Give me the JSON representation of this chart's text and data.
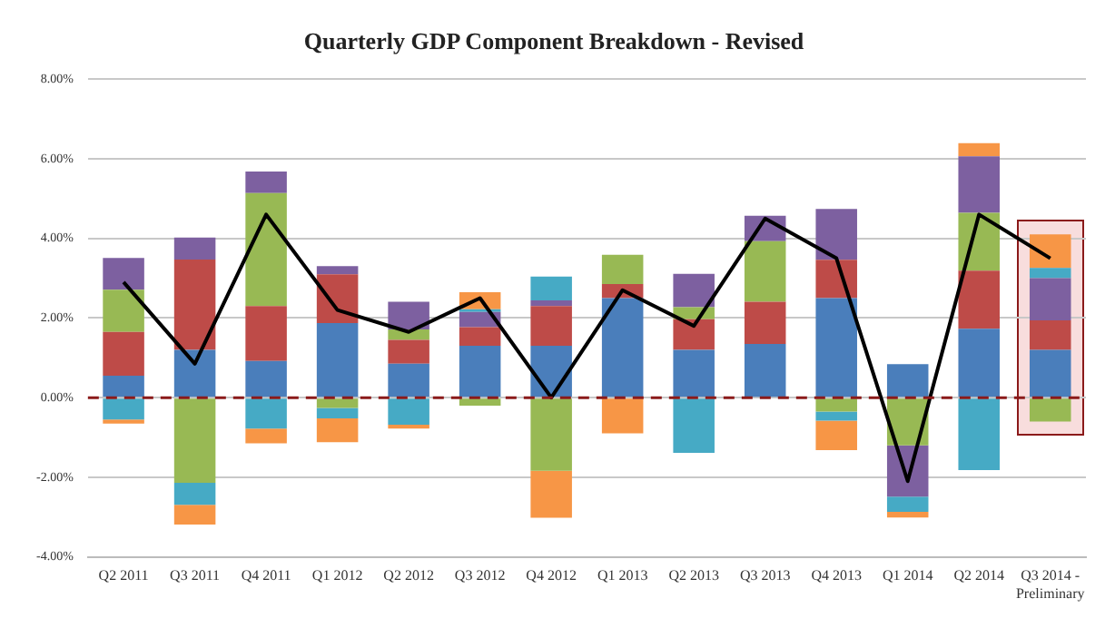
{
  "chart_data": {
    "type": "bar",
    "title": "Quarterly GDP Component Breakdown - Revised",
    "stacked": true,
    "categories": [
      "Q2 2011",
      "Q3 2011",
      "Q4 2011",
      "Q1 2012",
      "Q2 2012",
      "Q3 2012",
      "Q4 2012",
      "Q1 2013",
      "Q2 2013",
      "Q3 2013",
      "Q4 2013",
      "Q1 2014",
      "Q2 2014",
      "Q3 2014 - Preliminary"
    ],
    "series": [
      {
        "color": "#4a7ebb",
        "values": [
          0.55,
          1.2,
          0.92,
          1.87,
          0.85,
          1.3,
          1.3,
          2.5,
          1.2,
          1.35,
          2.5,
          0.84,
          1.73,
          1.2
        ]
      },
      {
        "color": "#be4b48",
        "values": [
          1.1,
          2.27,
          1.38,
          1.23,
          0.6,
          0.47,
          1.0,
          0.35,
          0.77,
          1.06,
          0.96,
          null,
          1.46,
          0.74
        ]
      },
      {
        "color": "#98b954",
        "values": [
          1.06,
          -2.14,
          2.84,
          -0.26,
          0.26,
          -0.2,
          -1.84,
          0.74,
          0.3,
          1.52,
          -0.35,
          -1.2,
          1.45,
          -0.6
        ]
      },
      {
        "color": "#7d60a0",
        "values": [
          0.8,
          0.55,
          0.54,
          0.2,
          0.7,
          0.38,
          0.14,
          null,
          0.84,
          0.64,
          1.28,
          -1.29,
          1.42,
          1.06
        ]
      },
      {
        "color": "#46aac5",
        "values": [
          -0.55,
          -0.55,
          -0.78,
          -0.26,
          -0.68,
          0.07,
          0.6,
          null,
          -1.39,
          null,
          -0.23,
          -0.38,
          -1.82,
          0.26
        ]
      },
      {
        "color": "#f79646",
        "values": [
          -0.1,
          -0.5,
          -0.37,
          -0.6,
          -0.1,
          0.43,
          -1.18,
          -0.9,
          null,
          null,
          -0.74,
          -0.14,
          0.33,
          0.84
        ]
      },
      {
        "type": "line",
        "color": "#000000",
        "values": [
          2.9,
          0.85,
          4.6,
          2.2,
          1.65,
          2.5,
          0,
          2.7,
          1.8,
          4.5,
          3.5,
          -2.1,
          4.6,
          3.5
        ]
      }
    ],
    "ylim": [
      -4,
      8
    ],
    "yticks": [
      {
        "value": -4,
        "label": "-4.00%"
      },
      {
        "value": -2,
        "label": "-2.00%"
      },
      {
        "value": 0,
        "label": "0.00%"
      },
      {
        "value": 2,
        "label": "2.00%"
      },
      {
        "value": 4,
        "label": "4.00%"
      },
      {
        "value": 6,
        "label": "6.00%"
      },
      {
        "value": 8,
        "label": "8.00%"
      }
    ],
    "grid": "y",
    "legend": false,
    "marker": "none",
    "ref_lines": [
      {
        "axis": "y",
        "value": 0,
        "color": "#8b1a1a",
        "line_style": "dashed"
      }
    ]
  }
}
